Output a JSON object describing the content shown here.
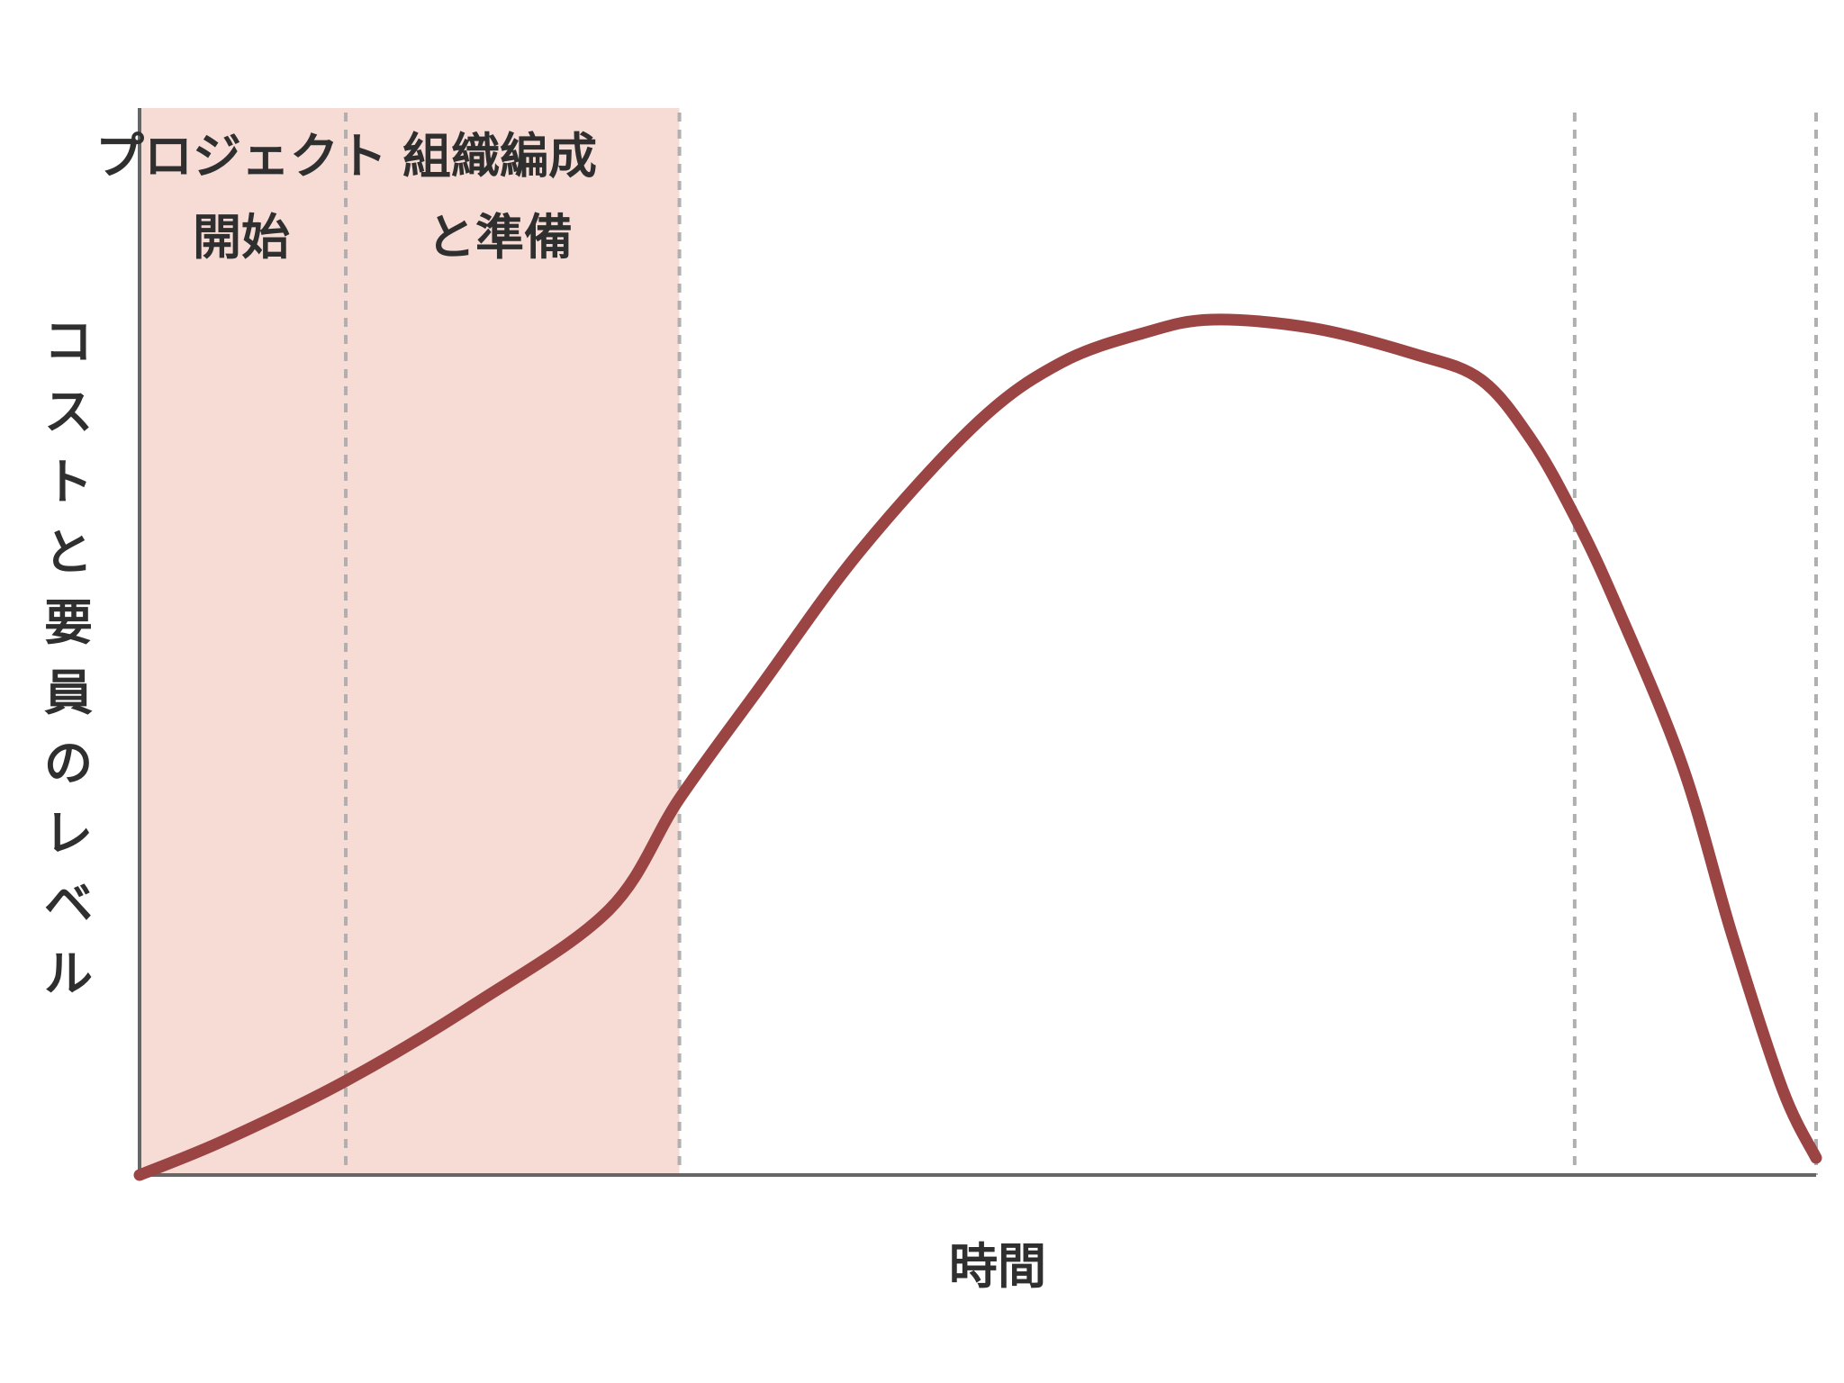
{
  "chart_data": {
    "type": "area",
    "xlabel": "時間",
    "ylabel": "コストと要員のレベル",
    "phases": [
      {
        "id": "start",
        "label_lines": [
          "プロジェクト",
          "開始"
        ],
        "x_start": 0,
        "x_end": 0.123,
        "highlighted": true
      },
      {
        "id": "organize",
        "label_lines": [
          "組織編成",
          "と準備"
        ],
        "x_start": 0.123,
        "x_end": 0.322,
        "highlighted": true
      },
      {
        "id": "execute",
        "label_lines": [],
        "x_start": 0.322,
        "x_end": 0.856,
        "highlighted": false
      },
      {
        "id": "close",
        "label_lines": [],
        "x_start": 0.856,
        "x_end": 1.0,
        "highlighted": false
      }
    ],
    "dividers": [
      0.123,
      0.322,
      0.856,
      1.0
    ],
    "series": [
      {
        "x": [
          0,
          0.05,
          0.123,
          0.2,
          0.28,
          0.322,
          0.37,
          0.43,
          0.5,
          0.55,
          0.6,
          0.64,
          0.7,
          0.76,
          0.8,
          0.83,
          0.856,
          0.88,
          0.92,
          0.95,
          0.98,
          1.0
        ],
        "y": [
          0,
          0.04,
          0.11,
          0.2,
          0.31,
          0.44,
          0.57,
          0.73,
          0.88,
          0.95,
          0.985,
          1.0,
          0.99,
          0.96,
          0.93,
          0.86,
          0.77,
          0.67,
          0.48,
          0.28,
          0.1,
          0.02
        ]
      }
    ],
    "xlim": [
      0,
      1
    ],
    "ylim": [
      0,
      1.2
    ],
    "grid": false,
    "colors": {
      "line": "#9b4444",
      "highlight": "#f7dcd6",
      "axis": "#666666",
      "divider": "#b0b0b0",
      "text": "#2f2f2f"
    }
  }
}
